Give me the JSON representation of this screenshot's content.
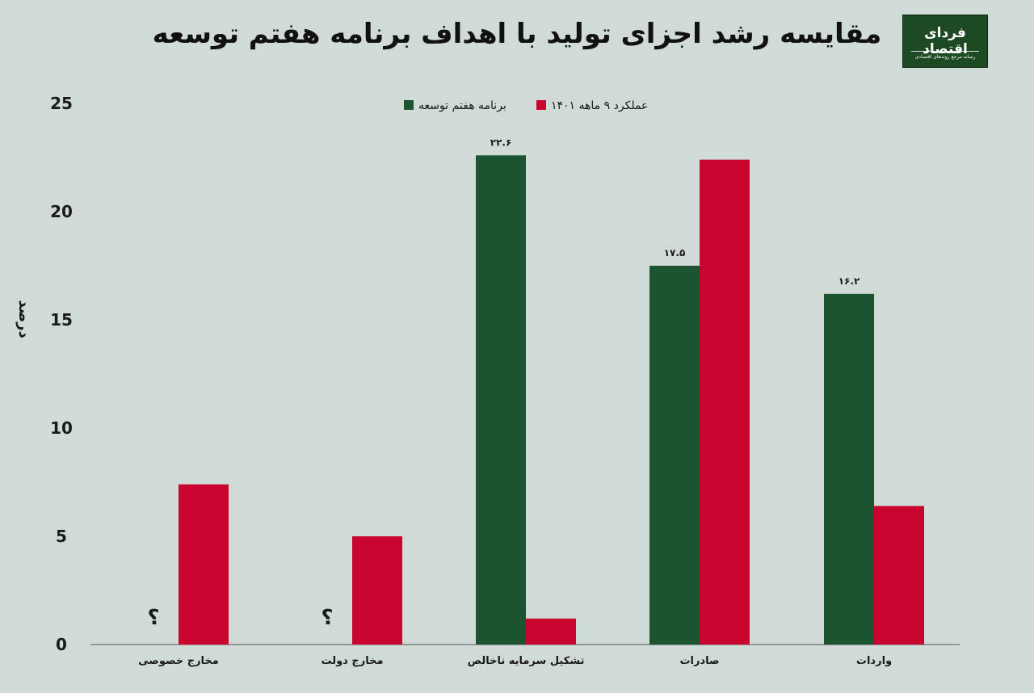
{
  "title": "مقایسه رشد اجزای تولید با اهداف برنامه هفتم توسعه",
  "logo": {
    "name": "فردای اقتصاد",
    "tagline": "رسانه مرجع روندهای اقتصادی"
  },
  "colors": {
    "target": "#1c5330",
    "actual": "#c8042f",
    "background": "#d0dbd8"
  },
  "chart_data": {
    "type": "bar",
    "title": "مقایسه رشد اجزای تولید با اهداف برنامه هفتم توسعه",
    "ylabel": "درصد",
    "ylim": [
      0,
      25
    ],
    "yticks": [
      0,
      5,
      10,
      15,
      20,
      25
    ],
    "ytick_labels": [
      "0",
      "5",
      "10",
      "15",
      "20",
      "25"
    ],
    "categories": [
      "مخارج خصوصی",
      "مخارج دولت",
      "تشکیل سرمایه ناخالص",
      "صادرات",
      "واردات"
    ],
    "series": [
      {
        "name": "برنامه هفتم توسعه",
        "values": [
          null,
          null,
          22.6,
          17.5,
          16.2
        ],
        "labels": [
          "؟",
          "؟",
          "۲۲.۶",
          "۱۷.۵",
          "۱۶.۲"
        ]
      },
      {
        "name": "عملکرد ۹ ماهه ۱۴۰۱",
        "values": [
          7.4,
          5.0,
          1.2,
          22.4,
          6.4
        ],
        "labels": [
          "",
          "",
          "",
          "",
          ""
        ]
      }
    ],
    "legend": "top-center",
    "grid": false
  }
}
